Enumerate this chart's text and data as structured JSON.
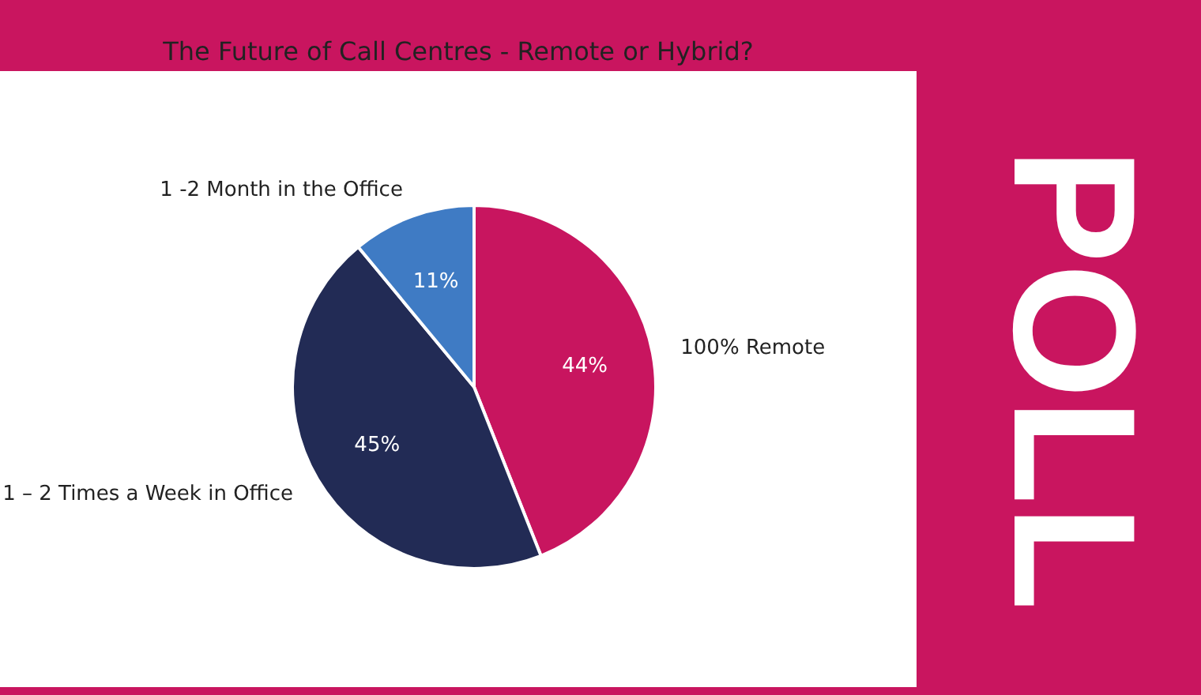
{
  "chart_data": {
    "type": "pie",
    "title": "The Future of Call Centres  - Remote or Hybrid?",
    "categories": [
      "100% Remote",
      "1 – 2 Times a Week in Office",
      "1 -2 Month in the Office"
    ],
    "values": [
      44,
      45,
      11
    ],
    "colors": [
      "#c8155f",
      "#222b55",
      "#3f7bc4"
    ],
    "value_labels": [
      "44%",
      "45%",
      "11%"
    ],
    "legend": false,
    "annotations": [
      "POLL"
    ]
  }
}
